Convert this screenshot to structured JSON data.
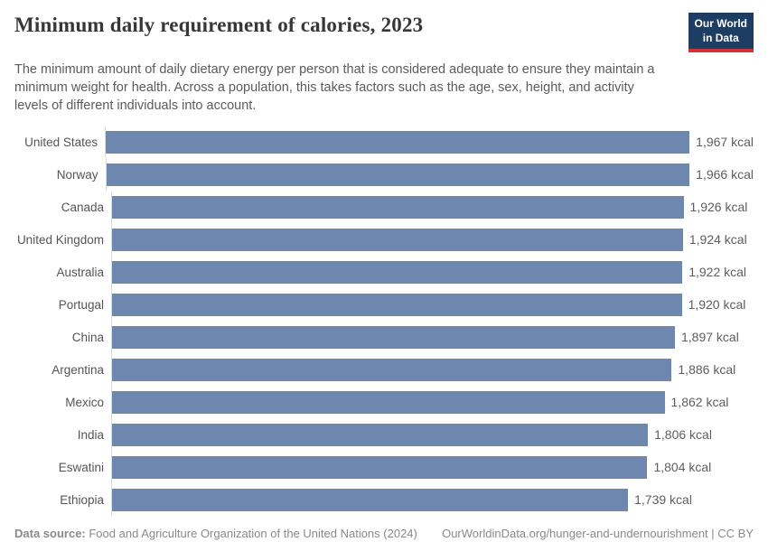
{
  "header": {
    "title": "Minimum daily requirement of calories, 2023",
    "subtitle_lines": [
      "The minimum amount of daily dietary energy per person that is considered adequate to ensure they maintain a",
      "minimum weight for health. Across a population, this takes factors such as the age, sex, height, and activity",
      "levels of different individuals into account."
    ],
    "logo": {
      "line1": "Our World",
      "line2": "in Data"
    }
  },
  "chart_data": {
    "type": "bar",
    "orientation": "horizontal",
    "title": "Minimum daily requirement of calories, 2023",
    "categories": [
      "United States",
      "Norway",
      "Canada",
      "United Kingdom",
      "Australia",
      "Portugal",
      "China",
      "Argentina",
      "Mexico",
      "India",
      "Eswatini",
      "Ethiopia"
    ],
    "values": [
      1967,
      1966,
      1926,
      1924,
      1922,
      1920,
      1897,
      1886,
      1862,
      1806,
      1804,
      1739
    ],
    "value_labels": [
      "1,967 kcal",
      "1,966 kcal",
      "1,926 kcal",
      "1,924 kcal",
      "1,922 kcal",
      "1,920 kcal",
      "1,897 kcal",
      "1,886 kcal",
      "1,862 kcal",
      "1,806 kcal",
      "1,804 kcal",
      "1,739 kcal"
    ],
    "unit": "kcal",
    "xlabel": "",
    "ylabel": "",
    "xlim": [
      0,
      1967
    ],
    "grid": false,
    "legend": false,
    "bar_color": "#6e87ae",
    "axis_line_color": "#dedede"
  },
  "footer": {
    "source_label": "Data source:",
    "source_text": " Food and Agriculture Organization of the United Nations (2024)",
    "url_text": "OurWorldinData.org/hunger-and-undernourishment | CC BY"
  },
  "colors": {
    "bar": "#6e87ae",
    "logo_bg": "#1d3d63",
    "logo_red": "#cf3238",
    "title": "#373737",
    "subtitle": "#5b5b5b",
    "value_label": "#5e5e5e",
    "footer": "#8a8a8a"
  }
}
